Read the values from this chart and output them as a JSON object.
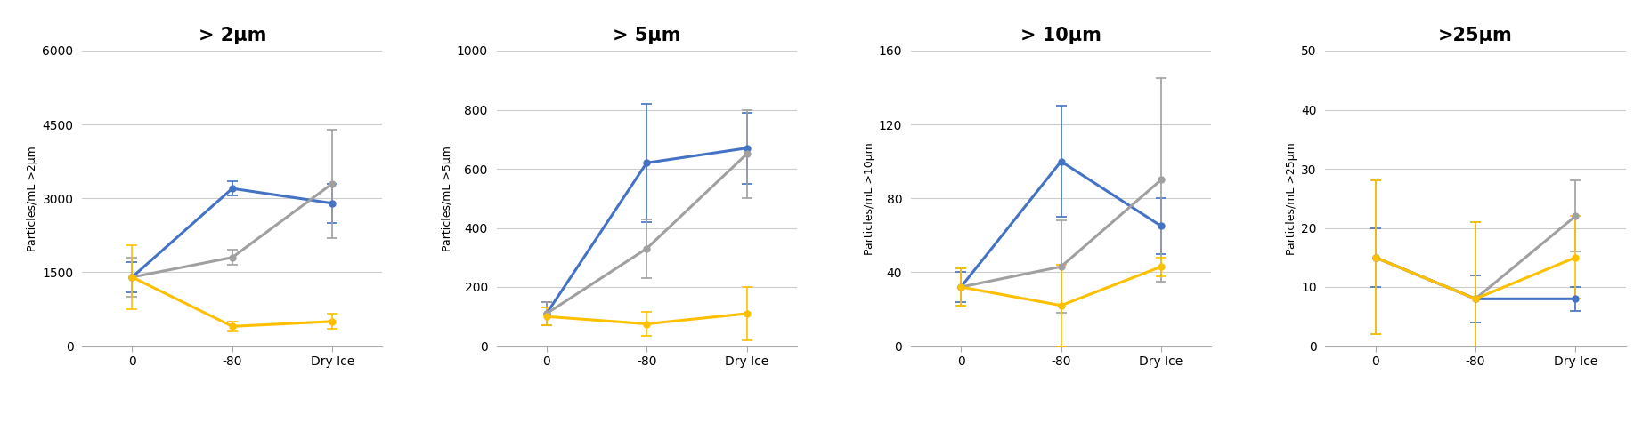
{
  "panels": [
    {
      "title": "> 2μm",
      "ylabel": "Particles/mL >2μm",
      "xlabels": [
        "0",
        "-80",
        "Dry Ice"
      ],
      "ylim": [
        0,
        6000
      ],
      "yticks": [
        0,
        1500,
        3000,
        4500,
        6000
      ],
      "series": [
        {
          "color": "#4472C4",
          "values": [
            1400,
            3200,
            2900
          ],
          "errors": [
            300,
            150,
            400
          ]
        },
        {
          "color": "#A0A0A0",
          "values": [
            1400,
            1800,
            3300
          ],
          "errors": [
            400,
            150,
            1100
          ]
        },
        {
          "color": "#FFC000",
          "values": [
            1400,
            400,
            500
          ],
          "errors": [
            650,
            100,
            150
          ]
        }
      ]
    },
    {
      "title": "> 5μm",
      "ylabel": "Particles/mL >5μm",
      "xlabels": [
        "0",
        "-80",
        "Dry Ice"
      ],
      "ylim": [
        0,
        1000
      ],
      "yticks": [
        0,
        200,
        400,
        600,
        800,
        1000
      ],
      "series": [
        {
          "color": "#4472C4",
          "values": [
            110,
            620,
            670
          ],
          "errors": [
            40,
            200,
            120
          ]
        },
        {
          "color": "#A0A0A0",
          "values": [
            110,
            330,
            650
          ],
          "errors": [
            40,
            100,
            150
          ]
        },
        {
          "color": "#FFC000",
          "values": [
            100,
            75,
            110
          ],
          "errors": [
            30,
            40,
            90
          ]
        }
      ]
    },
    {
      "title": "> 10μm",
      "ylabel": "Particles/mL >10μm",
      "xlabels": [
        "0",
        "-80",
        "Dry Ice"
      ],
      "ylim": [
        0,
        160
      ],
      "yticks": [
        0,
        40,
        80,
        120,
        160
      ],
      "series": [
        {
          "color": "#4472C4",
          "values": [
            32,
            100,
            65
          ],
          "errors": [
            8,
            30,
            15
          ]
        },
        {
          "color": "#A0A0A0",
          "values": [
            32,
            43,
            90
          ],
          "errors": [
            10,
            25,
            55
          ]
        },
        {
          "color": "#FFC000",
          "values": [
            32,
            22,
            43
          ],
          "errors": [
            10,
            22,
            5
          ]
        }
      ]
    },
    {
      "title": ">25μm",
      "ylabel": "Particles/mL >25μm",
      "xlabels": [
        "0",
        "-80",
        "Dry Ice"
      ],
      "ylim": [
        0,
        50
      ],
      "yticks": [
        0,
        10,
        20,
        30,
        40,
        50
      ],
      "series": [
        {
          "color": "#4472C4",
          "values": [
            15,
            8,
            8
          ],
          "errors": [
            5,
            4,
            2
          ]
        },
        {
          "color": "#A0A0A0",
          "values": [
            15,
            8,
            22
          ],
          "errors": [
            13,
            13,
            6
          ]
        },
        {
          "color": "#FFC000",
          "values": [
            15,
            8,
            15
          ],
          "errors": [
            13,
            13,
            7
          ]
        }
      ]
    }
  ],
  "background_color": "#ffffff",
  "grid_color": "#cccccc",
  "line_width": 2.2,
  "marker": "o",
  "marker_size": 5,
  "title_fontsize": 15,
  "ylabel_fontsize": 9,
  "tick_fontsize": 10
}
